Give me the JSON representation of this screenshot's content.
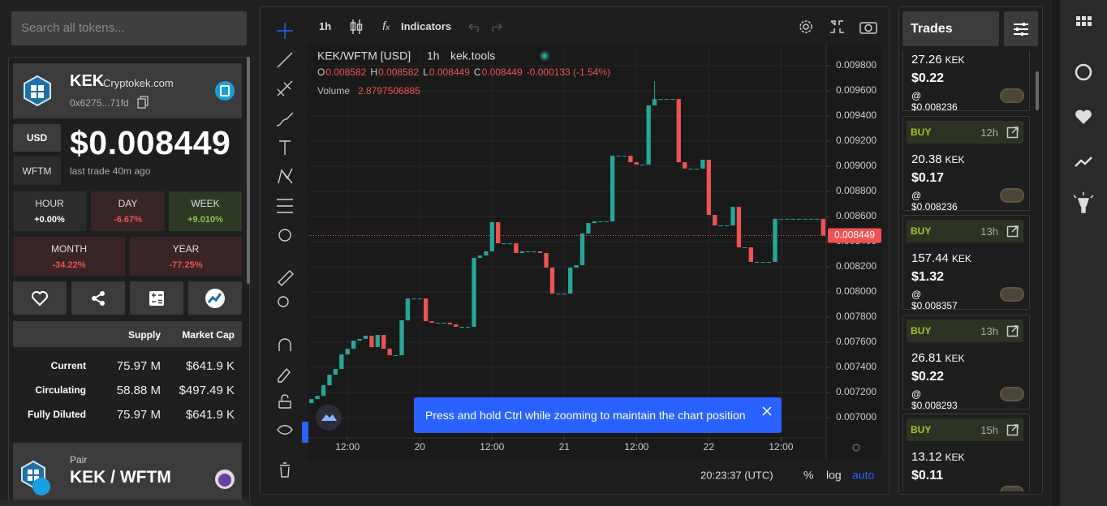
{
  "search": {
    "placeholder": "Search all tokens..."
  },
  "token": {
    "symbol": "KEK",
    "site": "Cryptokek.com",
    "address": "0x6275...71fd",
    "currencies": [
      "USD",
      "WFTM"
    ],
    "price": "$0.008449",
    "last_trade": "last trade 40m ago",
    "changes": [
      {
        "label": "HOUR",
        "value": "+0.00%"
      },
      {
        "label": "DAY",
        "value": "-6.67%"
      },
      {
        "label": "WEEK",
        "value": "+9.010%"
      },
      {
        "label": "MONTH",
        "value": "-34.22%"
      },
      {
        "label": "YEAR",
        "value": "-77.25%"
      }
    ]
  },
  "supply_table": {
    "columns": [
      "Supply",
      "Market Cap"
    ],
    "rows": [
      [
        "Current",
        "75.97 M",
        "$641.9 K"
      ],
      [
        "Circulating",
        "58.88 M",
        "$497.49 K"
      ],
      [
        "Fully Diluted",
        "75.97 M",
        "$641.9 K"
      ]
    ]
  },
  "pair": {
    "label": "Pair",
    "name": "KEK / WFTM"
  },
  "toolbar": {
    "interval": "1h",
    "indicators": "Indicators"
  },
  "legend": {
    "symbol": "KEK/WFTM [USD]",
    "interval": "1h",
    "source": "kek.tools",
    "ohlc": [
      {
        "key": "O",
        "value": "0.008582"
      },
      {
        "key": "H",
        "value": "0.008582"
      },
      {
        "key": "L",
        "value": "0.008449"
      },
      {
        "key": "C",
        "value": "0.008449"
      }
    ],
    "change": "-0.000133 (-1.54%)",
    "volume_label": "Volume",
    "volume": "2.8797506885"
  },
  "chart": {
    "type": "candlestick",
    "xlim": [
      -0.5,
      85.5
    ],
    "xticks": [
      {
        "value": 6,
        "label": "12:00"
      },
      {
        "value": 18,
        "label": "20"
      },
      {
        "value": 30,
        "label": "12:00"
      },
      {
        "value": 42,
        "label": "21"
      },
      {
        "value": 54,
        "label": "12:00"
      },
      {
        "value": 66,
        "label": "22"
      },
      {
        "value": 78,
        "label": "12:00"
      }
    ],
    "ylim": [
      0.006839,
      0.009968
    ],
    "yticks": [
      {
        "value": 0.0098,
        "label": "0.009800"
      },
      {
        "value": 0.0096,
        "label": "0.009600"
      },
      {
        "value": 0.0094,
        "label": "0.009400"
      },
      {
        "value": 0.0092,
        "label": "0.009200"
      },
      {
        "value": 0.009,
        "label": "0.009000"
      },
      {
        "value": 0.0088,
        "label": "0.008800"
      },
      {
        "value": 0.0086,
        "label": "0.008600"
      },
      {
        "value": 0.0084,
        "label": "0.008400"
      },
      {
        "value": 0.0082,
        "label": "0.008200"
      },
      {
        "value": 0.008,
        "label": "0.008000"
      },
      {
        "value": 0.0078,
        "label": "0.007800"
      },
      {
        "value": 0.0076,
        "label": "0.007600"
      },
      {
        "value": 0.0074,
        "label": "0.007400"
      },
      {
        "value": 0.0072,
        "label": "0.007200"
      },
      {
        "value": 0.007,
        "label": "0.007000"
      }
    ],
    "grid": true,
    "up_color": "#26a69a",
    "down_color": "#ef5350",
    "last_price": {
      "value": 0.008449,
      "label": "0.008449"
    },
    "x": [
      0,
      1,
      2,
      3,
      4,
      5,
      6,
      7,
      8,
      9,
      10,
      11,
      12,
      13,
      14,
      15,
      16,
      17,
      18,
      19,
      20,
      21,
      22,
      23,
      24,
      25,
      26,
      27,
      28,
      29,
      30,
      31,
      32,
      33,
      34,
      35,
      36,
      37,
      38,
      39,
      40,
      41,
      42,
      43,
      44,
      45,
      46,
      47,
      48,
      49,
      50,
      51,
      52,
      53,
      54,
      55,
      56,
      57,
      58,
      59,
      60,
      61,
      62,
      63,
      64,
      65,
      66,
      67,
      68,
      69,
      70,
      71,
      72,
      73,
      74,
      75,
      76,
      77,
      78,
      79,
      80,
      81,
      82,
      83,
      84,
      85
    ],
    "open": [
      0.007116,
      0.007148,
      0.007174,
      0.007258,
      0.007342,
      0.007387,
      0.007503,
      0.007548,
      0.007613,
      0.007626,
      0.007652,
      0.007561,
      0.007658,
      0.007548,
      0.007497,
      0.007497,
      0.007774,
      0.007948,
      0.007948,
      0.007948,
      0.007768,
      0.007755,
      0.007755,
      0.007755,
      0.007742,
      0.007723,
      0.007723,
      0.007723,
      0.008271,
      0.00829,
      0.008323,
      0.008555,
      0.008387,
      0.008387,
      0.008387,
      0.00831,
      0.008323,
      0.008323,
      0.008323,
      0.00831,
      0.008194,
      0.007987,
      0.007987,
      0.007987,
      0.008194,
      0.008213,
      0.008465,
      0.008548,
      0.008561,
      0.008561,
      0.008561,
      0.009084,
      0.009084,
      0.009084,
      0.009032,
      0.009013,
      0.009013,
      0.009484,
      0.009535,
      0.009535,
      0.009535,
      0.009535,
      0.009032,
      0.008981,
      0.008981,
      0.008981,
      0.009052,
      0.008613,
      0.008529,
      0.008529,
      0.008529,
      0.008677,
      0.008355,
      0.008355,
      0.008239,
      0.008239,
      0.008239,
      0.008239,
      0.008582,
      0.008582,
      0.008582,
      0.008582,
      0.008582,
      0.008582,
      0.008582,
      0.008582
    ],
    "high": [
      0.007148,
      0.007174,
      0.007258,
      0.007342,
      0.007387,
      0.007503,
      0.007548,
      0.007613,
      0.007626,
      0.007652,
      0.007652,
      0.007658,
      0.007658,
      0.007548,
      0.007497,
      0.007774,
      0.007948,
      0.007948,
      0.007948,
      0.007948,
      0.007768,
      0.007755,
      0.007755,
      0.007755,
      0.007742,
      0.007723,
      0.007723,
      0.008271,
      0.00829,
      0.008323,
      0.008555,
      0.008555,
      0.008387,
      0.008387,
      0.008387,
      0.008323,
      0.008323,
      0.008323,
      0.008323,
      0.00831,
      0.008194,
      0.007987,
      0.007987,
      0.008194,
      0.008213,
      0.008465,
      0.008548,
      0.008561,
      0.008561,
      0.008561,
      0.009084,
      0.009084,
      0.009084,
      0.009084,
      0.009032,
      0.009013,
      0.009484,
      0.009677,
      0.009535,
      0.009535,
      0.009535,
      0.009535,
      0.009032,
      0.008981,
      0.008981,
      0.009052,
      0.009052,
      0.008613,
      0.008529,
      0.008529,
      0.008677,
      0.008677,
      0.008355,
      0.008355,
      0.008239,
      0.008239,
      0.008239,
      0.008582,
      0.008582,
      0.008582,
      0.008582,
      0.008582,
      0.008582,
      0.008582,
      0.008582,
      0.008582
    ],
    "low": [
      0.007116,
      0.007148,
      0.007174,
      0.007258,
      0.007342,
      0.007387,
      0.007503,
      0.007548,
      0.007613,
      0.007626,
      0.007561,
      0.007561,
      0.007548,
      0.007497,
      0.007497,
      0.007497,
      0.007774,
      0.007948,
      0.007948,
      0.007768,
      0.007755,
      0.007755,
      0.007755,
      0.007742,
      0.007723,
      0.007723,
      0.007723,
      0.007723,
      0.008271,
      0.00829,
      0.008323,
      0.008387,
      0.008387,
      0.008387,
      0.00831,
      0.00831,
      0.008323,
      0.008323,
      0.00831,
      0.008194,
      0.007987,
      0.007987,
      0.007987,
      0.007987,
      0.008194,
      0.008213,
      0.008465,
      0.008548,
      0.008561,
      0.008561,
      0.008561,
      0.009084,
      0.009084,
      0.009032,
      0.009013,
      0.009013,
      0.009013,
      0.009484,
      0.009535,
      0.009535,
      0.009535,
      0.009032,
      0.008981,
      0.008981,
      0.008981,
      0.008981,
      0.008613,
      0.008529,
      0.008529,
      0.008529,
      0.008529,
      0.008355,
      0.008355,
      0.008239,
      0.008239,
      0.008239,
      0.008239,
      0.008239,
      0.008582,
      0.008582,
      0.008582,
      0.008582,
      0.008582,
      0.008582,
      0.008582,
      0.008449
    ],
    "close": [
      0.007148,
      0.007174,
      0.007258,
      0.007342,
      0.007387,
      0.007503,
      0.007548,
      0.007613,
      0.007626,
      0.007652,
      0.007561,
      0.007658,
      0.007548,
      0.007497,
      0.007497,
      0.007774,
      0.007948,
      0.007948,
      0.007948,
      0.007768,
      0.007755,
      0.007755,
      0.007755,
      0.007742,
      0.007723,
      0.007723,
      0.007723,
      0.008271,
      0.00829,
      0.008323,
      0.008555,
      0.008387,
      0.008387,
      0.008387,
      0.00831,
      0.008323,
      0.008323,
      0.008323,
      0.00831,
      0.008194,
      0.007987,
      0.007987,
      0.007987,
      0.008194,
      0.008213,
      0.008465,
      0.008548,
      0.008561,
      0.008561,
      0.008561,
      0.009084,
      0.009084,
      0.009084,
      0.009032,
      0.009013,
      0.009013,
      0.009484,
      0.009535,
      0.009535,
      0.009535,
      0.009535,
      0.009032,
      0.008981,
      0.008981,
      0.008981,
      0.009052,
      0.008613,
      0.008529,
      0.008529,
      0.008529,
      0.008677,
      0.008355,
      0.008355,
      0.008239,
      0.008239,
      0.008239,
      0.008239,
      0.008582,
      0.008582,
      0.008582,
      0.008582,
      0.008582,
      0.008582,
      0.008582,
      0.008582,
      0.008449
    ]
  },
  "toast": "Press and hold Ctrl while zooming to maintain the chart position",
  "footer": {
    "time": "20:23:37 (UTC)",
    "percent": "%",
    "log": "log",
    "auto": "auto"
  },
  "trades": {
    "title": "Trades",
    "items": [
      {
        "amount": "27.26",
        "unit": "KEK",
        "usd": "$0.22",
        "price": "@ $0.008236"
      },
      {
        "side": "BUY",
        "age": "12h",
        "amount": "20.38",
        "unit": "KEK",
        "usd": "$0.17",
        "price": "@ $0.008236"
      },
      {
        "side": "BUY",
        "age": "13h",
        "amount": "157.44",
        "unit": "KEK",
        "usd": "$1.32",
        "price": "@ $0.008357"
      },
      {
        "side": "BUY",
        "age": "13h",
        "amount": "26.81",
        "unit": "KEK",
        "usd": "$0.22",
        "price": "@ $0.008293"
      },
      {
        "side": "BUY",
        "age": "15h",
        "amount": "13.12",
        "unit": "KEK",
        "usd": "$0.11"
      }
    ]
  }
}
